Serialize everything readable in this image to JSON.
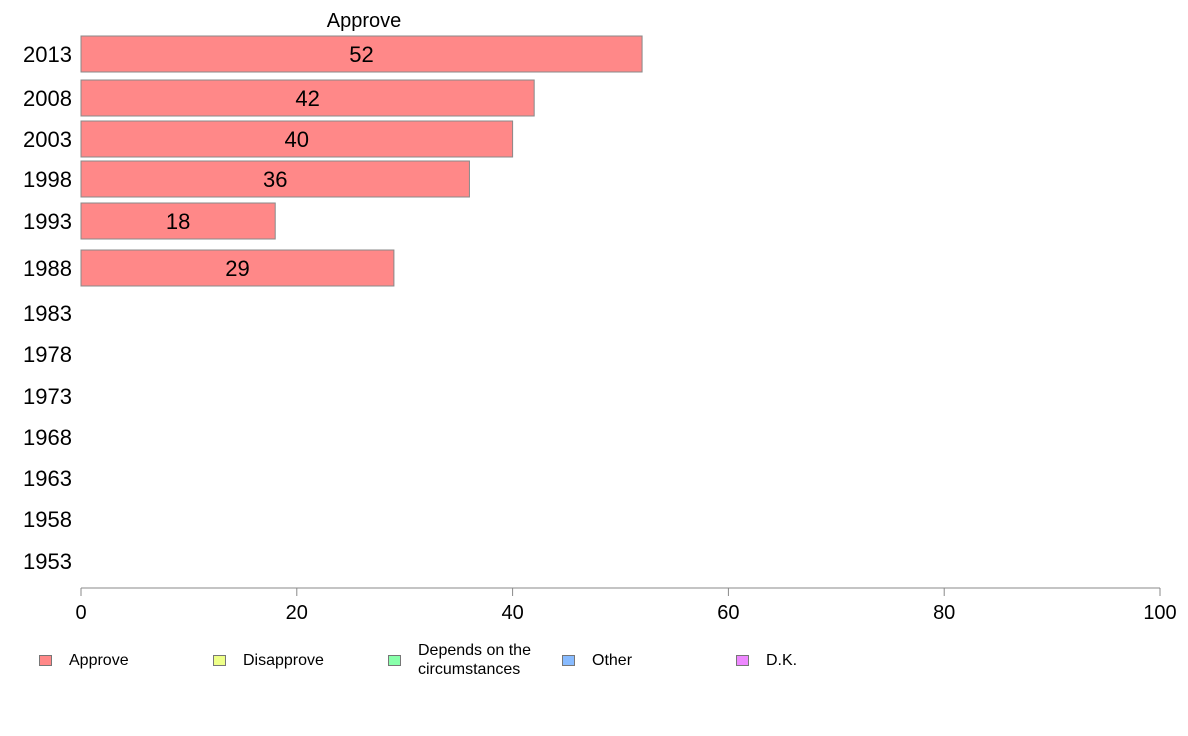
{
  "chart_data": {
    "type": "bar",
    "orientation": "horizontal",
    "title": "Approve",
    "categories": [
      "2013",
      "2008",
      "2003",
      "1998",
      "1993",
      "1988",
      "1983",
      "1978",
      "1973",
      "1968",
      "1963",
      "1958",
      "1953"
    ],
    "series": [
      {
        "name": "Approve",
        "color": "#ff8888",
        "values": [
          52,
          42,
          40,
          36,
          18,
          29,
          null,
          null,
          null,
          null,
          null,
          null,
          null
        ]
      }
    ],
    "data_labels": [
      "52",
      "42",
      "40",
      "36",
      "18",
      "29"
    ],
    "xlim": [
      0,
      100
    ],
    "xticks": [
      0,
      20,
      40,
      60,
      80,
      100
    ],
    "xtick_labels": [
      "0",
      "20",
      "40",
      "60",
      "80",
      "100"
    ],
    "grid": false,
    "legend_position": "bottom",
    "legend": [
      {
        "label": "Approve",
        "color": "#ff8888"
      },
      {
        "label": "Disapprove",
        "color": "#eeff88"
      },
      {
        "label": "Depends on the\ncircumstances",
        "color": "#88ffaa"
      },
      {
        "label": "Other",
        "color": "#88bbff"
      },
      {
        "label": "D.K.",
        "color": "#ee88ff"
      }
    ]
  }
}
